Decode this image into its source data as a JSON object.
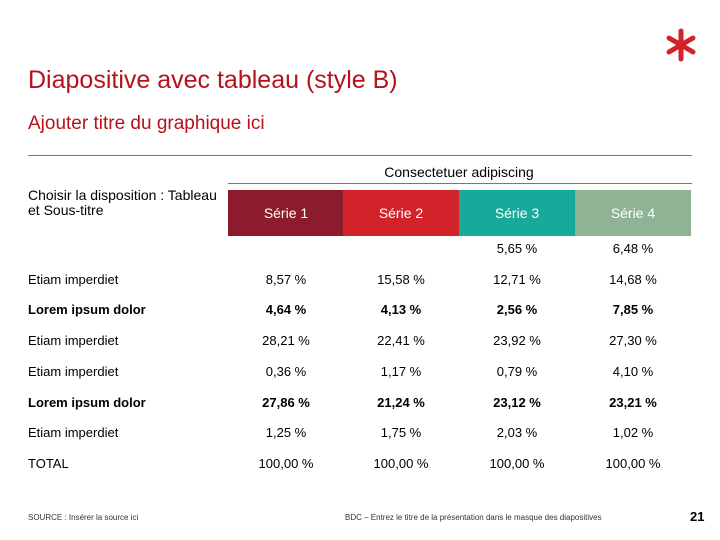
{
  "header": {
    "title": "Diapositive avec tableau (style B)",
    "subtitle": "Ajouter titre du graphique ici"
  },
  "table": {
    "caption": "Consectetuer adipiscing",
    "corner": "Choisir la disposition : Tableau et Sous-titre",
    "columns": [
      "Série 1",
      "Série 2",
      "Série 3",
      "Série 4"
    ],
    "rows": [
      {
        "label": null,
        "cells": [
          null,
          null,
          "5,65 %",
          "6,48 %"
        ],
        "bold": false
      },
      {
        "label": "Etiam imperdiet",
        "cells": [
          "8,57 %",
          "15,58 %",
          "12,71 %",
          "14,68 %"
        ],
        "bold": false
      },
      {
        "label": "Lorem ipsum dolor",
        "cells": [
          "4,64 %",
          "4,13 %",
          "2,56 %",
          "7,85 %"
        ],
        "bold": true
      },
      {
        "label": "Etiam imperdiet",
        "cells": [
          "28,21 %",
          "22,41 %",
          "23,92 %",
          "27,30 %"
        ],
        "bold": false
      },
      {
        "label": "Etiam imperdiet",
        "cells": [
          "0,36 %",
          "1,17 %",
          "0,79 %",
          "4,10 %"
        ],
        "bold": false
      },
      {
        "label": "Lorem ipsum dolor",
        "cells": [
          "27,86 %",
          "21,24 %",
          "23,12 %",
          "23,21 %"
        ],
        "bold": true
      },
      {
        "label": "Etiam imperdiet",
        "cells": [
          "1,25 %",
          "1,75 %",
          "2,03 %",
          "1,02 %"
        ],
        "bold": false
      },
      {
        "label": "TOTAL",
        "cells": [
          "100,00 %",
          "100,00 %",
          "100,00 %",
          "100,00 %"
        ],
        "bold": false
      }
    ]
  },
  "footer": {
    "source": "SOURCE : Insérer la source ici",
    "presentation": "BDC – Entrez le titre de la présentation dans le masque des diapositives",
    "page": "21"
  }
}
